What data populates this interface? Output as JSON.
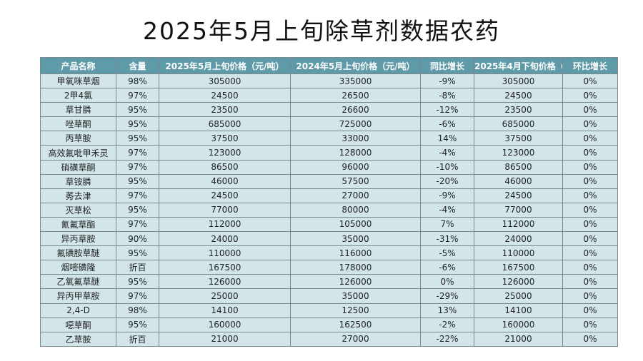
{
  "title": "2025年5月上旬除草剂数据农药",
  "headers": [
    "产品名称",
    "含量",
    "2025年5月上旬价格（元/吨）",
    "2024年5月上旬价格（元/吨）",
    "同比增长",
    "2025年4月下旬价格（元/吨）",
    "环比增长"
  ],
  "rows": [
    [
      "甲氧咪草烟",
      "98%",
      "305000",
      "335000",
      "-9%",
      "305000",
      "0%"
    ],
    [
      "2甲4氯",
      "97%",
      "24500",
      "26500",
      "-8%",
      "24500",
      "0%"
    ],
    [
      "草甘膦",
      "95%",
      "23500",
      "26600",
      "-12%",
      "23500",
      "0%"
    ],
    [
      "唑草酮",
      "95%",
      "685000",
      "725000",
      "-6%",
      "685000",
      "0%"
    ],
    [
      "丙草胺",
      "95%",
      "37500",
      "33000",
      "14%",
      "37500",
      "0%"
    ],
    [
      "高效氟吡甲禾灵",
      "97%",
      "123000",
      "128000",
      "-4%",
      "123000",
      "0%"
    ],
    [
      "硝磺草酮",
      "97%",
      "86500",
      "96000",
      "-10%",
      "86500",
      "0%"
    ],
    [
      "草铵膦",
      "95%",
      "46000",
      "57500",
      "-20%",
      "46000",
      "0%"
    ],
    [
      "莠去津",
      "97%",
      "24500",
      "27000",
      "-9%",
      "24500",
      "0%"
    ],
    [
      "灭草松",
      "95%",
      "77000",
      "80000",
      "-4%",
      "77000",
      "0%"
    ],
    [
      "氰氟草酯",
      "97%",
      "112000",
      "105000",
      "7%",
      "112000",
      "0%"
    ],
    [
      "异丙草胺",
      "90%",
      "24000",
      "35000",
      "-31%",
      "24000",
      "0%"
    ],
    [
      "氟磺胺草醚",
      "95%",
      "110000",
      "116000",
      "-5%",
      "110000",
      "0%"
    ],
    [
      "烟嘧磺隆",
      "折百",
      "167500",
      "178000",
      "-6%",
      "167500",
      "0%"
    ],
    [
      "乙氧氟草醚",
      "95%",
      "126000",
      "126000",
      "0%",
      "126000",
      "0%"
    ],
    [
      "异丙甲草胺",
      "97%",
      "25000",
      "35000",
      "-29%",
      "25000",
      "0%"
    ],
    [
      "2,4-D",
      "98%",
      "14100",
      "12500",
      "13%",
      "14100",
      "0%"
    ],
    [
      "噁草酮",
      "95%",
      "160000",
      "162500",
      "-2%",
      "160000",
      "0%"
    ],
    [
      "乙草胺",
      "折百",
      "21000",
      "27000",
      "-22%",
      "21000",
      "0%"
    ]
  ],
  "colors": {
    "header_bg": "#5e9aa7",
    "header_text": "#ffffff",
    "cell_bg": "#d2e6ea",
    "border": "#7a8a8c"
  }
}
